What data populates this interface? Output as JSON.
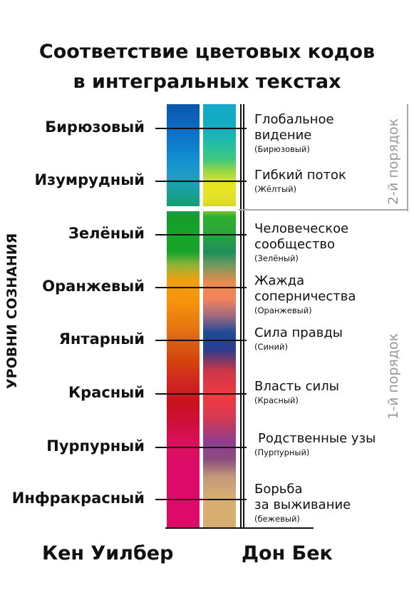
{
  "title": {
    "line1": "Соответствие цветовых кодов",
    "line2": "в интегральных текстах"
  },
  "axis_label": "УРОВНИ СОЗНАНИЯ",
  "wilber_levels": [
    "Бирюзовый",
    "Изумрудный",
    "Зелёный",
    "Оранжевый",
    "Янтарный",
    "Красный",
    "Пурпурный",
    "Инфракрасный"
  ],
  "beck_levels": [
    {
      "main": [
        "Глобальное",
        "видение"
      ],
      "sub": "(Бирюзовый)"
    },
    {
      "main": [
        "Гибкий поток"
      ],
      "sub": "(Жёлтый)"
    },
    {
      "main": [
        "Человеческое",
        "сообщество"
      ],
      "sub": "(Зелёный)"
    },
    {
      "main": [
        "Жажда",
        "соперничества"
      ],
      "sub": "(Оранжевый)"
    },
    {
      "main": [
        "Сила правды"
      ],
      "sub": "(Синий)"
    },
    {
      "main": [
        "Власть силы"
      ],
      "sub": "(Красный)"
    },
    {
      "main": [
        "Родственные узы"
      ],
      "sub": "(Пурпурный)"
    },
    {
      "main": [
        "Борьба",
        "за выживание"
      ],
      "sub": "(бежевый)"
    }
  ],
  "orders": {
    "second": "2-й порядок",
    "first": "1-й порядок"
  },
  "authors": {
    "wilber": "Кен Уилбер",
    "beck": "Дон Бек"
  },
  "colors": {
    "text": "#111111",
    "order_text": "#9a9a9a",
    "separator": "#a8a8a8"
  }
}
